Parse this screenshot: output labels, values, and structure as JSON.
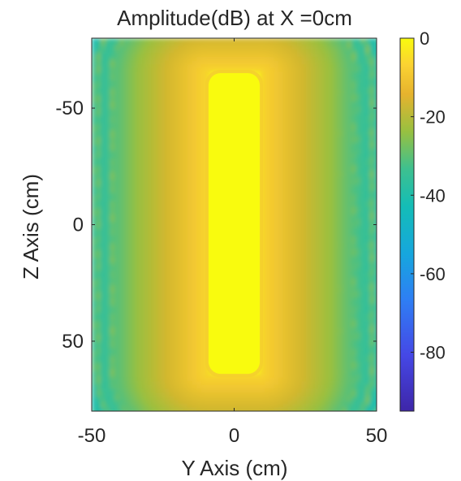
{
  "chart_data": {
    "type": "heatmap",
    "title": "Amplitude(dB) at X =0cm",
    "xlabel": "Y Axis (cm)",
    "ylabel": "Z Axis (cm)",
    "xlim": [
      -50,
      50
    ],
    "ylim": [
      80,
      -80
    ],
    "x_ticks": [
      {
        "value": -50,
        "label": "-50"
      },
      {
        "value": 0,
        "label": "0"
      },
      {
        "value": 50,
        "label": "50"
      }
    ],
    "y_ticks": [
      {
        "value": -50,
        "label": "-50"
      },
      {
        "value": 0,
        "label": "0"
      },
      {
        "value": 50,
        "label": "50"
      }
    ],
    "colorbar": {
      "range": [
        -95,
        0
      ],
      "colormap": "parula",
      "ticks": [
        {
          "value": 0,
          "label": "0"
        },
        {
          "value": -20,
          "label": "-20"
        },
        {
          "value": -40,
          "label": "-40"
        },
        {
          "value": -60,
          "label": "-60"
        },
        {
          "value": -80,
          "label": "-80"
        }
      ]
    },
    "features": {
      "main_lobe": {
        "y_range": [
          -9,
          9
        ],
        "z_range": [
          -65,
          64
        ],
        "level_db": 0
      },
      "background_level_db": -40,
      "sidelobe_stripe_spacing_cm": 5.6
    }
  }
}
